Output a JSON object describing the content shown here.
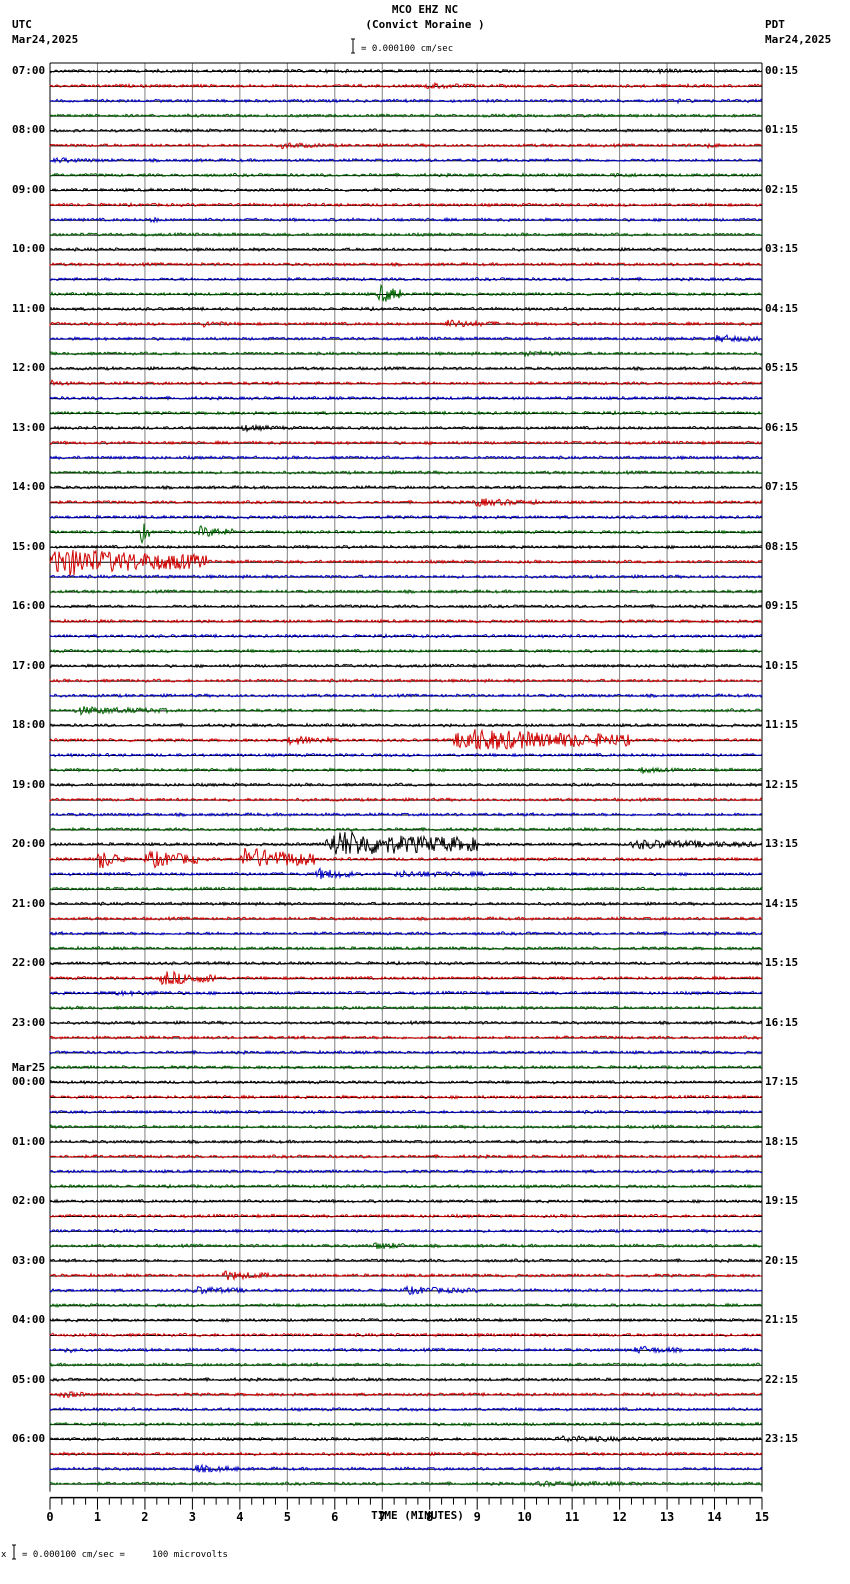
{
  "header": {
    "station": "MCO EHZ NC",
    "site": "(Convict Moraine )",
    "scale_text": "= 0.000100 cm/sec",
    "left_tz": "UTC",
    "left_date": "Mar24,2025",
    "right_tz": "PDT",
    "right_date": "Mar24,2025"
  },
  "footer": {
    "scale_text": "= 0.000100 cm/sec =     100 microvolts",
    "prefix": "x"
  },
  "colors": {
    "trace_cycle": [
      "#000000",
      "#d00000",
      "#0000c8",
      "#006400"
    ],
    "grid": "#808080",
    "axis": "#000000"
  },
  "chart_data": {
    "type": "line",
    "title": "MCO EHZ NC (Convict Moraine )",
    "subtitle": "= 0.000100 cm/sec",
    "xlabel": "TIME (MINUTES)",
    "ylabel": "",
    "xlim": [
      0,
      15
    ],
    "x_ticks": [
      "0",
      "1",
      "2",
      "3",
      "4",
      "5",
      "6",
      "7",
      "8",
      "9",
      "10",
      "11",
      "12",
      "13",
      "14",
      "15"
    ],
    "grid": true,
    "traces_per_hour": 4,
    "minutes_per_trace": 15,
    "left_labels_utc": [
      "07:00",
      "08:00",
      "09:00",
      "10:00",
      "11:00",
      "12:00",
      "13:00",
      "14:00",
      "15:00",
      "16:00",
      "17:00",
      "18:00",
      "19:00",
      "20:00",
      "21:00",
      "22:00",
      "23:00",
      "00:00",
      "01:00",
      "02:00",
      "03:00",
      "04:00",
      "05:00",
      "06:00"
    ],
    "left_date_change": {
      "label": "Mar25",
      "at": "00:00"
    },
    "right_labels_pdt": [
      "00:15",
      "01:15",
      "02:15",
      "03:15",
      "04:15",
      "05:15",
      "06:15",
      "07:15",
      "08:15",
      "09:15",
      "10:15",
      "11:15",
      "12:15",
      "13:15",
      "14:15",
      "15:15",
      "16:15",
      "17:15",
      "18:15",
      "19:15",
      "20:15",
      "21:15",
      "22:15",
      "23:15"
    ],
    "scale": "0.000100 cm/sec = 100 microvolts",
    "events": [
      {
        "row": 1,
        "start_min": 7.9,
        "end_min": 9.0,
        "amp": 4
      },
      {
        "row": 0,
        "start_min": 12.8,
        "end_min": 13.6,
        "amp": 3
      },
      {
        "row": 2,
        "start_min": 13.2,
        "end_min": 13.8,
        "amp": 3
      },
      {
        "row": 5,
        "start_min": 4.8,
        "end_min": 5.9,
        "amp": 4
      },
      {
        "row": 5,
        "start_min": 13.8,
        "end_min": 14.4,
        "amp": 3
      },
      {
        "row": 6,
        "start_min": 0.0,
        "end_min": 1.8,
        "amp": 3
      },
      {
        "row": 7,
        "start_min": 11.8,
        "end_min": 12.8,
        "amp": 3
      },
      {
        "row": 10,
        "start_min": 2.1,
        "end_min": 2.4,
        "amp": 4
      },
      {
        "row": 15,
        "start_min": 6.9,
        "end_min": 7.4,
        "amp": 12
      },
      {
        "row": 17,
        "start_min": 3.2,
        "end_min": 3.8,
        "amp": 4
      },
      {
        "row": 17,
        "start_min": 8.3,
        "end_min": 9.4,
        "amp": 5
      },
      {
        "row": 18,
        "start_min": 14.0,
        "end_min": 15.0,
        "amp": 5
      },
      {
        "row": 19,
        "start_min": 9.9,
        "end_min": 11.0,
        "amp": 4
      },
      {
        "row": 21,
        "start_min": 0.0,
        "end_min": 0.4,
        "amp": 4
      },
      {
        "row": 24,
        "start_min": 4.0,
        "end_min": 5.0,
        "amp": 4
      },
      {
        "row": 29,
        "start_min": 8.9,
        "end_min": 10.3,
        "amp": 5
      },
      {
        "row": 31,
        "start_min": 3.1,
        "end_min": 3.9,
        "amp": 7
      },
      {
        "row": 33,
        "start_min": 0.0,
        "end_min": 3.3,
        "amp": 17
      },
      {
        "row": 31,
        "start_min": 1.9,
        "end_min": 2.1,
        "amp": 14
      },
      {
        "row": 43,
        "start_min": 0.5,
        "end_min": 2.5,
        "amp": 5
      },
      {
        "row": 45,
        "start_min": 8.5,
        "end_min": 12.2,
        "amp": 14
      },
      {
        "row": 45,
        "start_min": 5.0,
        "end_min": 6.0,
        "amp": 6
      },
      {
        "row": 47,
        "start_min": 12.4,
        "end_min": 13.2,
        "amp": 4
      },
      {
        "row": 52,
        "start_min": 5.8,
        "end_min": 9.0,
        "amp": 16
      },
      {
        "row": 52,
        "start_min": 12.2,
        "end_min": 14.9,
        "amp": 6
      },
      {
        "row": 53,
        "start_min": 1.0,
        "end_min": 1.6,
        "amp": 12
      },
      {
        "row": 53,
        "start_min": 2.0,
        "end_min": 3.1,
        "amp": 11
      },
      {
        "row": 53,
        "start_min": 4.0,
        "end_min": 5.6,
        "amp": 14
      },
      {
        "row": 54,
        "start_min": 5.6,
        "end_min": 6.4,
        "amp": 7
      },
      {
        "row": 54,
        "start_min": 7.2,
        "end_min": 9.8,
        "amp": 4
      },
      {
        "row": 61,
        "start_min": 2.3,
        "end_min": 3.5,
        "amp": 9
      },
      {
        "row": 62,
        "start_min": 1.2,
        "end_min": 3.6,
        "amp": 3
      },
      {
        "row": 79,
        "start_min": 6.8,
        "end_min": 7.6,
        "amp": 5
      },
      {
        "row": 81,
        "start_min": 3.6,
        "end_min": 4.6,
        "amp": 6
      },
      {
        "row": 82,
        "start_min": 3.0,
        "end_min": 4.2,
        "amp": 5
      },
      {
        "row": 82,
        "start_min": 7.4,
        "end_min": 9.0,
        "amp": 5
      },
      {
        "row": 86,
        "start_min": 0.3,
        "end_min": 0.6,
        "amp": 5
      },
      {
        "row": 86,
        "start_min": 12.3,
        "end_min": 13.3,
        "amp": 5
      },
      {
        "row": 89,
        "start_min": 0.2,
        "end_min": 0.8,
        "amp": 5
      },
      {
        "row": 92,
        "start_min": 10.6,
        "end_min": 13.2,
        "amp": 4
      },
      {
        "row": 94,
        "start_min": 3.0,
        "end_min": 4.0,
        "amp": 5
      },
      {
        "row": 95,
        "start_min": 10.0,
        "end_min": 14.9,
        "amp": 3
      }
    ]
  }
}
